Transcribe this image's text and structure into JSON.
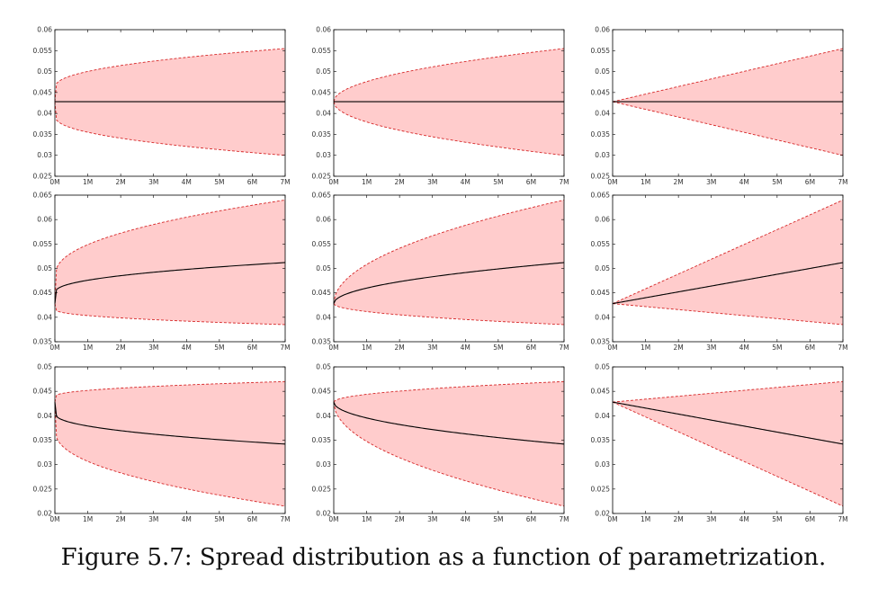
{
  "caption": "Figure 5.7: Spread distribution as a function of parametrization.",
  "colors": {
    "band_fill": "#ffcccc",
    "band_edge": "#d62728",
    "mean_line": "#000000",
    "frame": "#000000"
  },
  "chart_data": [
    {
      "type": "area",
      "row": 1,
      "col": 1,
      "x": [
        0,
        1,
        2,
        3,
        4,
        5,
        6,
        7
      ],
      "xticklabels": [
        "0M",
        "1M",
        "2M",
        "3M",
        "4M",
        "5M",
        "6M",
        "7M"
      ],
      "xlim": [
        0,
        7
      ],
      "ylim": [
        0.025,
        0.06
      ],
      "yticks": [
        0.025,
        0.03,
        0.035,
        0.04,
        0.045,
        0.05,
        0.055,
        0.06
      ],
      "yticklabels": [
        "0.025",
        "0.03",
        "0.035",
        "0.04",
        "0.045",
        "0.05",
        "0.055",
        "0.06"
      ],
      "shape": "sqrt-fast",
      "start": 0.0428,
      "mean_end": 0.0428,
      "upper_end": 0.0555,
      "lower_end": 0.03,
      "grid": false
    },
    {
      "type": "area",
      "row": 1,
      "col": 2,
      "x": [
        0,
        1,
        2,
        3,
        4,
        5,
        6,
        7
      ],
      "xticklabels": [
        "0M",
        "1M",
        "2M",
        "3M",
        "4M",
        "5M",
        "6M",
        "7M"
      ],
      "xlim": [
        0,
        7
      ],
      "ylim": [
        0.025,
        0.06
      ],
      "yticks": [
        0.025,
        0.03,
        0.035,
        0.04,
        0.045,
        0.05,
        0.055,
        0.06
      ],
      "yticklabels": [
        "0.025",
        "0.03",
        "0.035",
        "0.04",
        "0.045",
        "0.05",
        "0.055",
        "0.06"
      ],
      "shape": "sqrt",
      "start": 0.0428,
      "mean_end": 0.0428,
      "upper_end": 0.0555,
      "lower_end": 0.03,
      "grid": false
    },
    {
      "type": "area",
      "row": 1,
      "col": 3,
      "x": [
        0,
        1,
        2,
        3,
        4,
        5,
        6,
        7
      ],
      "xticklabels": [
        "0M",
        "1M",
        "2M",
        "3M",
        "4M",
        "5M",
        "6M",
        "7M"
      ],
      "xlim": [
        0,
        7
      ],
      "ylim": [
        0.025,
        0.06
      ],
      "yticks": [
        0.025,
        0.03,
        0.035,
        0.04,
        0.045,
        0.05,
        0.055,
        0.06
      ],
      "yticklabels": [
        "0.025",
        "0.03",
        "0.035",
        "0.04",
        "0.045",
        "0.05",
        "0.055",
        "0.06"
      ],
      "shape": "linear",
      "start": 0.0428,
      "mean_end": 0.0428,
      "upper_end": 0.0555,
      "lower_end": 0.03,
      "grid": false
    },
    {
      "type": "area",
      "row": 2,
      "col": 1,
      "x": [
        0,
        1,
        2,
        3,
        4,
        5,
        6,
        7
      ],
      "xticklabels": [
        "0M",
        "1M",
        "2M",
        "3M",
        "4M",
        "5M",
        "6M",
        "7M"
      ],
      "xlim": [
        0,
        7
      ],
      "ylim": [
        0.035,
        0.065
      ],
      "yticks": [
        0.035,
        0.04,
        0.045,
        0.05,
        0.055,
        0.06,
        0.065
      ],
      "yticklabels": [
        "0.035",
        "0.04",
        "0.045",
        "0.05",
        "0.055",
        "0.06",
        "0.065"
      ],
      "shape": "sqrt-fast",
      "start": 0.0428,
      "mean_end": 0.0512,
      "upper_end": 0.064,
      "lower_end": 0.0385,
      "grid": false
    },
    {
      "type": "area",
      "row": 2,
      "col": 2,
      "x": [
        0,
        1,
        2,
        3,
        4,
        5,
        6,
        7
      ],
      "xticklabels": [
        "0M",
        "1M",
        "2M",
        "3M",
        "4M",
        "5M",
        "6M",
        "7M"
      ],
      "xlim": [
        0,
        7
      ],
      "ylim": [
        0.035,
        0.065
      ],
      "yticks": [
        0.035,
        0.04,
        0.045,
        0.05,
        0.055,
        0.06,
        0.065
      ],
      "yticklabels": [
        "0.035",
        "0.04",
        "0.045",
        "0.05",
        "0.055",
        "0.06",
        "0.065"
      ],
      "shape": "sqrt",
      "start": 0.0428,
      "mean_end": 0.0512,
      "upper_end": 0.064,
      "lower_end": 0.0385,
      "grid": false
    },
    {
      "type": "area",
      "row": 2,
      "col": 3,
      "x": [
        0,
        1,
        2,
        3,
        4,
        5,
        6,
        7
      ],
      "xticklabels": [
        "0M",
        "1M",
        "2M",
        "3M",
        "4M",
        "5M",
        "6M",
        "7M"
      ],
      "xlim": [
        0,
        7
      ],
      "ylim": [
        0.035,
        0.065
      ],
      "yticks": [
        0.035,
        0.04,
        0.045,
        0.05,
        0.055,
        0.06,
        0.065
      ],
      "yticklabels": [
        "0.035",
        "0.04",
        "0.045",
        "0.05",
        "0.055",
        "0.06",
        "0.065"
      ],
      "shape": "linear",
      "start": 0.0428,
      "mean_end": 0.0512,
      "upper_end": 0.064,
      "lower_end": 0.0385,
      "grid": false
    },
    {
      "type": "area",
      "row": 3,
      "col": 1,
      "x": [
        0,
        1,
        2,
        3,
        4,
        5,
        6,
        7
      ],
      "xticklabels": [
        "0M",
        "1M",
        "2M",
        "3M",
        "4M",
        "5M",
        "6M",
        "7M"
      ],
      "xlim": [
        0,
        7
      ],
      "ylim": [
        0.02,
        0.05
      ],
      "yticks": [
        0.02,
        0.025,
        0.03,
        0.035,
        0.04,
        0.045,
        0.05
      ],
      "yticklabels": [
        "0.02",
        "0.025",
        "0.03",
        "0.035",
        "0.04",
        "0.045",
        "0.05"
      ],
      "shape": "sqrt-fast",
      "start": 0.0428,
      "mean_end": 0.0342,
      "upper_end": 0.047,
      "lower_end": 0.0215,
      "grid": false
    },
    {
      "type": "area",
      "row": 3,
      "col": 2,
      "x": [
        0,
        1,
        2,
        3,
        4,
        5,
        6,
        7
      ],
      "xticklabels": [
        "0M",
        "1M",
        "2M",
        "3M",
        "4M",
        "5M",
        "6M",
        "7M"
      ],
      "xlim": [
        0,
        7
      ],
      "ylim": [
        0.02,
        0.05
      ],
      "yticks": [
        0.02,
        0.025,
        0.03,
        0.035,
        0.04,
        0.045,
        0.05
      ],
      "yticklabels": [
        "0.02",
        "0.025",
        "0.03",
        "0.035",
        "0.04",
        "0.045",
        "0.05"
      ],
      "shape": "sqrt",
      "start": 0.0428,
      "mean_end": 0.0342,
      "upper_end": 0.047,
      "lower_end": 0.0215,
      "grid": false
    },
    {
      "type": "area",
      "row": 3,
      "col": 3,
      "x": [
        0,
        1,
        2,
        3,
        4,
        5,
        6,
        7
      ],
      "xticklabels": [
        "0M",
        "1M",
        "2M",
        "3M",
        "4M",
        "5M",
        "6M",
        "7M"
      ],
      "xlim": [
        0,
        7
      ],
      "ylim": [
        0.02,
        0.05
      ],
      "yticks": [
        0.02,
        0.025,
        0.03,
        0.035,
        0.04,
        0.045,
        0.05
      ],
      "yticklabels": [
        "0.02",
        "0.025",
        "0.03",
        "0.035",
        "0.04",
        "0.045",
        "0.05"
      ],
      "shape": "linear",
      "start": 0.0428,
      "mean_end": 0.0342,
      "upper_end": 0.047,
      "lower_end": 0.0215,
      "grid": false
    }
  ]
}
